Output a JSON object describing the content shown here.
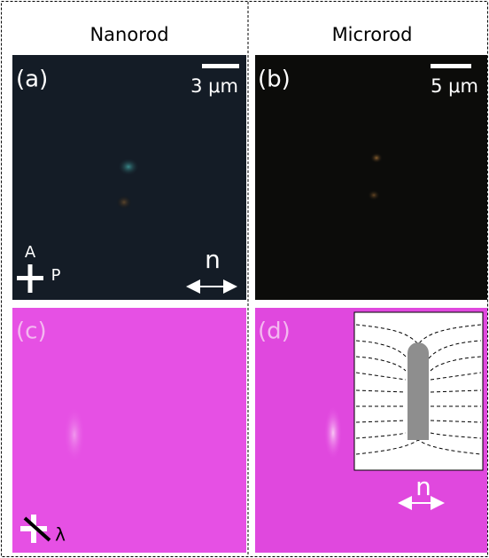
{
  "columns": [
    "Nanorod",
    "Microrod"
  ],
  "panels": [
    {
      "label": "(a)",
      "scale_bar": "3 μm",
      "polarizer": "P",
      "analyzer": "A",
      "director": "n"
    },
    {
      "label": "(b)",
      "scale_bar": "5 μm"
    },
    {
      "label": "(c)",
      "plate": "λ"
    },
    {
      "label": "(d)",
      "director": "n"
    }
  ]
}
